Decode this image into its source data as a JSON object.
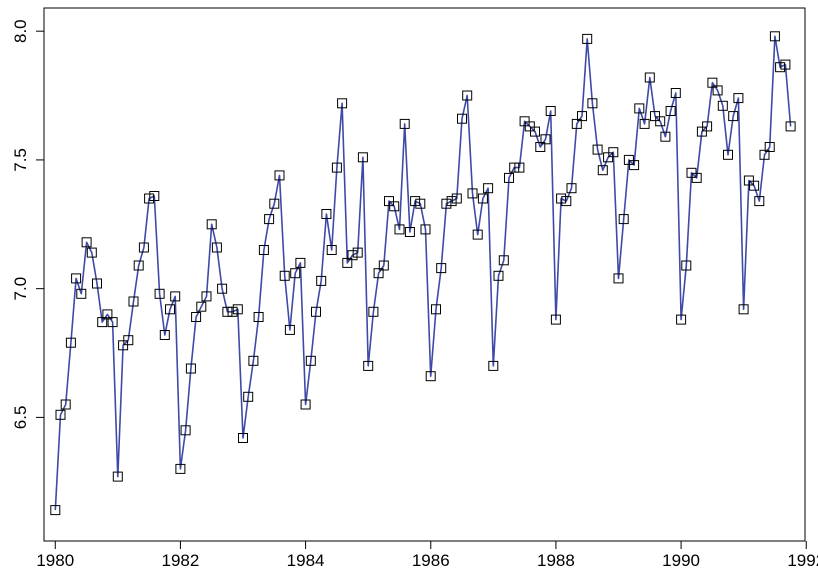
{
  "chart_data": {
    "type": "line",
    "title": "",
    "xlabel": "",
    "ylabel": "",
    "xlim": [
      1979.82,
      1991.98
    ],
    "ylim": [
      6.02,
      8.09
    ],
    "x_ticks": [
      1980,
      1982,
      1984,
      1986,
      1988,
      1990,
      1992
    ],
    "x_tick_labels": [
      "1980",
      "1982",
      "1984",
      "1986",
      "1988",
      "1990",
      "1992"
    ],
    "y_ticks": [
      6.5,
      7.0,
      7.5,
      8.0
    ],
    "y_tick_labels": [
      "6.5",
      "7.0",
      "7.5",
      "8.0"
    ],
    "grid": false,
    "marker": "open-square",
    "line_color": "#3f4aa8",
    "marker_color": "#000000",
    "series": [
      {
        "start": 1980,
        "step": 0.08333,
        "values": [
          6.14,
          6.51,
          6.55,
          6.79,
          7.04,
          6.98,
          7.18,
          7.14,
          7.02,
          6.87,
          6.9,
          6.87,
          6.27,
          6.78,
          6.8,
          6.95,
          7.09,
          7.16,
          7.35,
          7.36,
          6.98,
          6.82,
          6.92,
          6.97,
          6.3,
          6.45,
          6.69,
          6.89,
          6.93,
          6.97,
          7.25,
          7.16,
          7.0,
          6.91,
          6.91,
          6.92,
          6.42,
          6.58,
          6.72,
          6.89,
          7.15,
          7.27,
          7.33,
          7.44,
          7.05,
          6.84,
          7.06,
          7.1,
          6.55,
          6.72,
          6.91,
          7.03,
          7.29,
          7.15,
          7.47,
          7.72,
          7.1,
          7.13,
          7.14,
          7.51,
          6.7,
          6.91,
          7.06,
          7.09,
          7.34,
          7.32,
          7.23,
          7.64,
          7.22,
          7.34,
          7.33,
          7.23,
          6.66,
          6.92,
          7.08,
          7.33,
          7.34,
          7.35,
          7.66,
          7.75,
          7.37,
          7.21,
          7.35,
          7.39,
          6.7,
          7.05,
          7.11,
          7.43,
          7.47,
          7.47,
          7.65,
          7.63,
          7.61,
          7.55,
          7.58,
          7.69,
          6.88,
          7.35,
          7.34,
          7.39,
          7.64,
          7.67,
          7.97,
          7.72,
          7.54,
          7.46,
          7.51,
          7.53,
          7.04,
          7.27,
          7.5,
          7.48,
          7.7,
          7.64,
          7.82,
          7.67,
          7.65,
          7.59,
          7.69,
          7.76,
          6.88,
          7.09,
          7.45,
          7.43,
          7.61,
          7.63,
          7.8,
          7.77,
          7.71,
          7.52,
          7.67,
          7.74,
          6.92,
          7.42,
          7.4,
          7.34,
          7.52,
          7.55,
          7.98,
          7.86,
          7.87,
          7.63
        ]
      }
    ]
  }
}
